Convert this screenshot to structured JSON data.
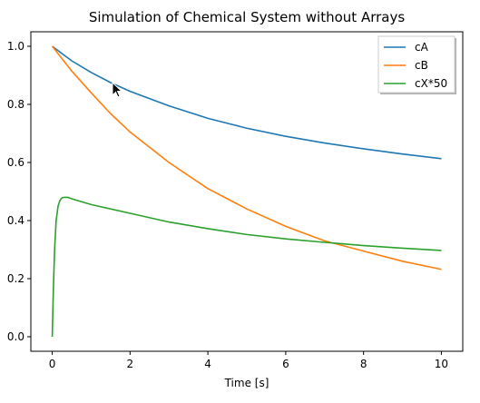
{
  "chart_data": {
    "type": "line",
    "title": "Simulation of Chemical System without Arrays",
    "xlabel": "Time [s]",
    "ylabel": "",
    "xlim": [
      -0.55,
      10.55
    ],
    "ylim": [
      -0.05,
      1.05
    ],
    "xticks": [
      0,
      2,
      4,
      6,
      8,
      10
    ],
    "yticks": [
      0.0,
      0.2,
      0.4,
      0.6,
      0.8,
      1.0
    ],
    "xtick_labels": [
      "0",
      "2",
      "4",
      "6",
      "8",
      "10"
    ],
    "ytick_labels": [
      "0.0",
      "0.2",
      "0.4",
      "0.6",
      "0.8",
      "1.0"
    ],
    "grid": false,
    "legend_position": "top-right",
    "series": [
      {
        "name": "cA",
        "color": "#1f77b4",
        "x": [
          0,
          0.5,
          1,
          1.5,
          2,
          3,
          4,
          5,
          6,
          7,
          8,
          9,
          10
        ],
        "y": [
          1.0,
          0.95,
          0.91,
          0.875,
          0.845,
          0.795,
          0.752,
          0.718,
          0.69,
          0.667,
          0.647,
          0.629,
          0.613
        ]
      },
      {
        "name": "cB",
        "color": "#ff7f0e",
        "x": [
          0,
          0.5,
          1,
          1.5,
          2,
          3,
          4,
          5,
          6,
          7,
          8,
          9,
          10
        ],
        "y": [
          1.0,
          0.915,
          0.84,
          0.768,
          0.705,
          0.6,
          0.51,
          0.44,
          0.38,
          0.33,
          0.295,
          0.26,
          0.232
        ]
      },
      {
        "name": "cX*50",
        "color": "#2ca02c",
        "x": [
          0,
          0.03,
          0.06,
          0.1,
          0.15,
          0.2,
          0.25,
          0.3,
          0.4,
          0.5,
          1,
          2,
          3,
          4,
          5,
          6,
          7,
          8,
          9,
          10
        ],
        "y": [
          0.0,
          0.17,
          0.3,
          0.4,
          0.45,
          0.47,
          0.478,
          0.48,
          0.48,
          0.475,
          0.455,
          0.425,
          0.395,
          0.372,
          0.352,
          0.337,
          0.325,
          0.314,
          0.305,
          0.297
        ]
      }
    ]
  }
}
